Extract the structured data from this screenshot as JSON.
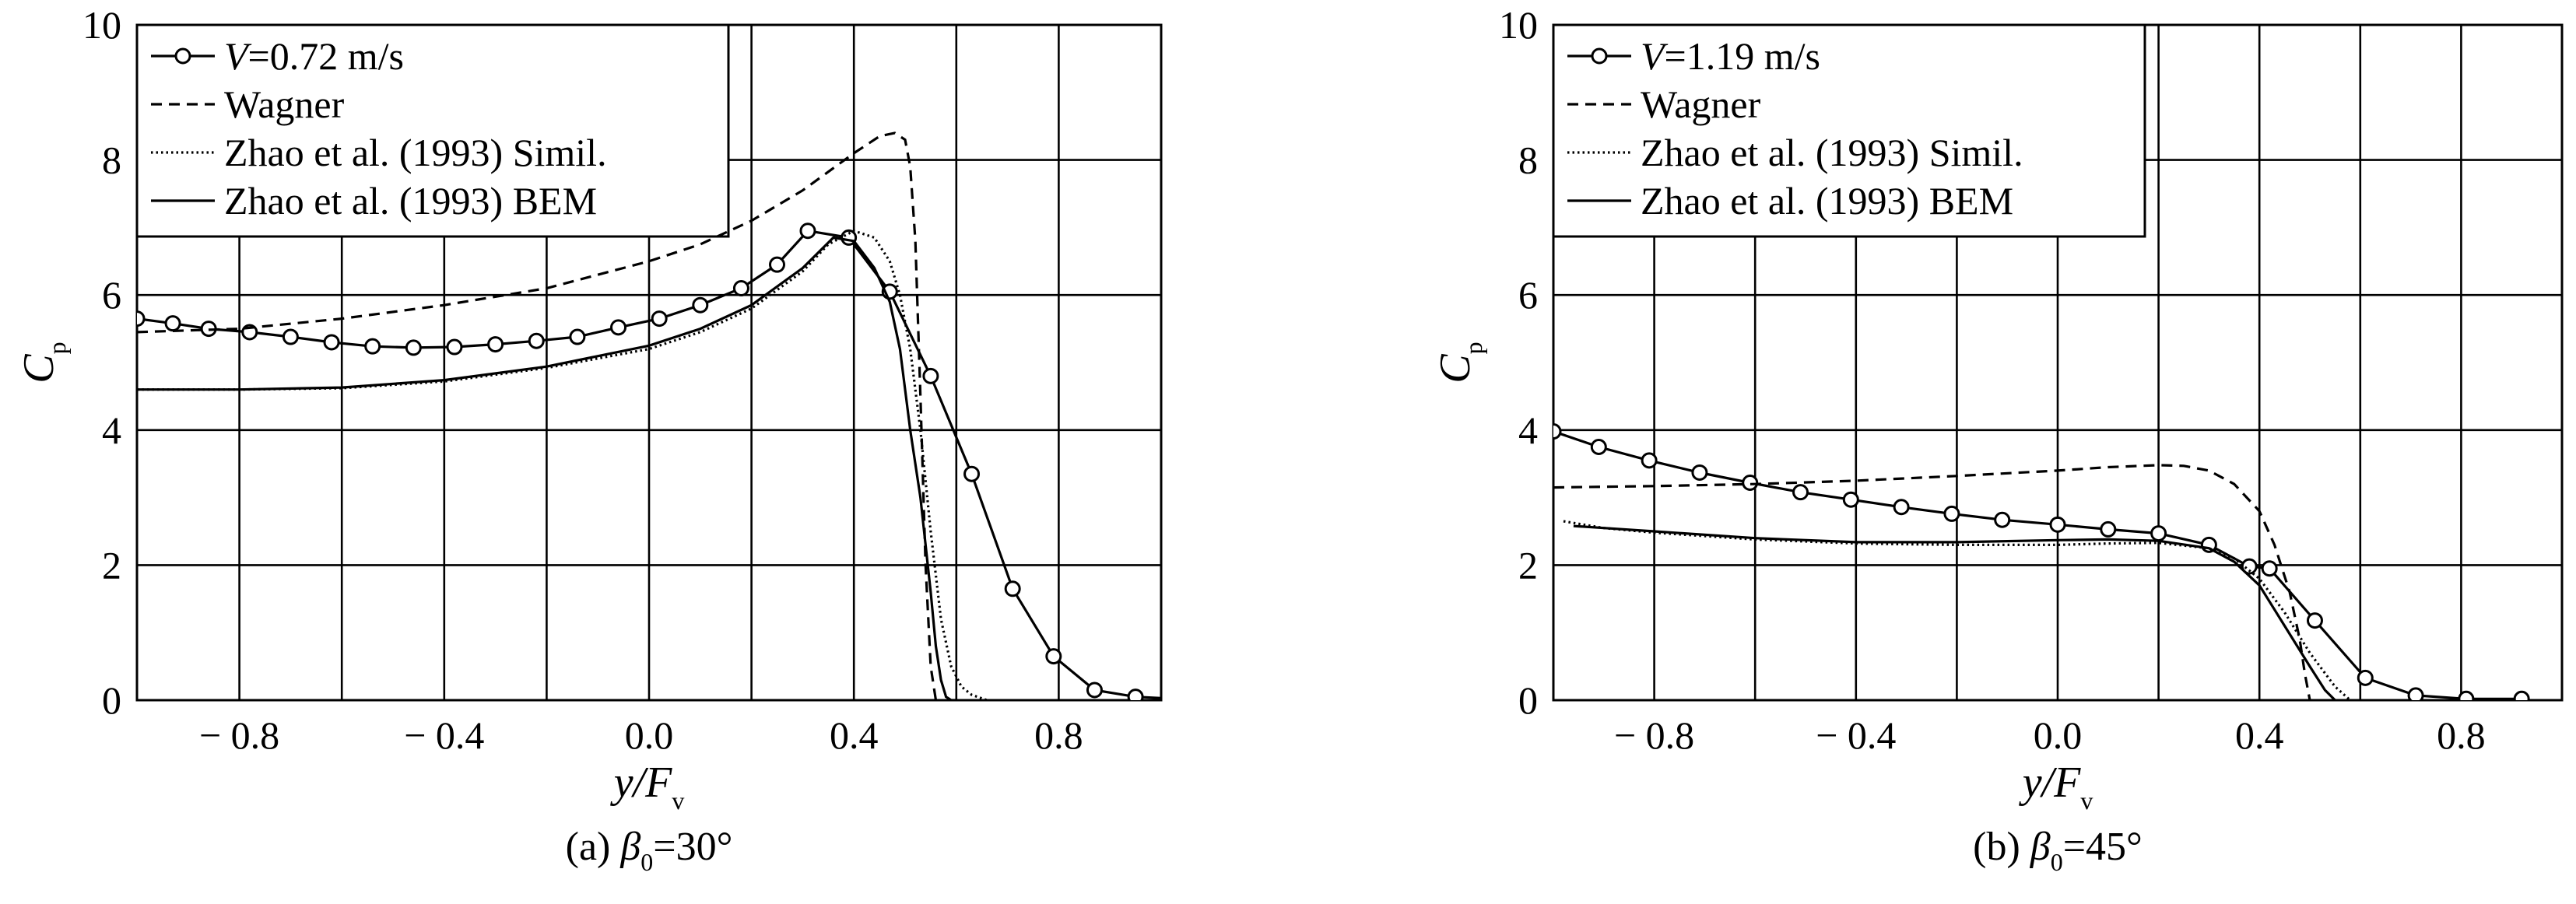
{
  "chart_data": [
    {
      "type": "line",
      "caption": {
        "prefix": "(a) ",
        "beta": "β",
        "sub": "0",
        "suffix": "=30°"
      },
      "xlabel": {
        "main": "y/F",
        "sub": "v"
      },
      "ylabel": {
        "main": "C",
        "sub": "p"
      },
      "xlim": [
        -1.0,
        1.0
      ],
      "ylim": [
        0,
        10
      ],
      "xticks": [
        -0.8,
        -0.4,
        0.0,
        0.4,
        0.8
      ],
      "xtick_labels": [
        "− 0.8",
        "− 0.4",
        "0.0",
        "0.4",
        "0.8"
      ],
      "yticks": [
        0,
        2,
        4,
        6,
        8,
        10
      ],
      "ytick_labels": [
        "0",
        "2",
        "4",
        "6",
        "8",
        "10"
      ],
      "grid": true,
      "legend_position": "top-left",
      "legend": [
        {
          "prefix": "V",
          "text": "=0.72 m/s",
          "style": "line-marker"
        },
        {
          "text": "Wagner",
          "style": "dashed"
        },
        {
          "text": "Zhao et al. (1993) Simil.",
          "style": "dotted"
        },
        {
          "text": "Zhao et al. (1993) BEM",
          "style": "solid"
        }
      ],
      "series": [
        {
          "name": "V=0.72 m/s",
          "style": "line-marker",
          "x": [
            -1.0,
            -0.93,
            -0.86,
            -0.78,
            -0.7,
            -0.62,
            -0.54,
            -0.46,
            -0.38,
            -0.3,
            -0.22,
            -0.14,
            -0.06,
            0.02,
            0.1,
            0.18,
            0.25,
            0.31,
            0.39,
            0.47,
            0.55,
            0.63,
            0.71,
            0.79,
            0.87,
            0.95,
            1.0
          ],
          "y": [
            5.65,
            5.58,
            5.5,
            5.45,
            5.38,
            5.3,
            5.24,
            5.22,
            5.23,
            5.27,
            5.32,
            5.38,
            5.52,
            5.65,
            5.85,
            6.1,
            6.45,
            6.95,
            6.85,
            6.05,
            4.8,
            3.35,
            1.65,
            0.65,
            0.15,
            0.05,
            0.03
          ],
          "markers": [
            -1.0,
            -0.93,
            -0.86,
            -0.78,
            -0.7,
            -0.62,
            -0.54,
            -0.46,
            -0.38,
            -0.3,
            -0.22,
            -0.14,
            -0.06,
            0.02,
            0.1,
            0.18,
            0.25,
            0.31,
            0.39,
            0.47,
            0.55,
            0.63,
            0.71,
            0.79,
            0.87,
            0.95
          ]
        },
        {
          "name": "Wagner",
          "style": "dashed",
          "x": [
            -1.0,
            -0.8,
            -0.6,
            -0.4,
            -0.2,
            0.0,
            0.1,
            0.2,
            0.3,
            0.4,
            0.45,
            0.48,
            0.5,
            0.51,
            0.52,
            0.53,
            0.54,
            0.55,
            0.56
          ],
          "y": [
            5.45,
            5.5,
            5.65,
            5.85,
            6.1,
            6.5,
            6.75,
            7.1,
            7.55,
            8.1,
            8.35,
            8.4,
            8.3,
            7.9,
            6.8,
            4.5,
            2.0,
            0.5,
            0.0
          ]
        },
        {
          "name": "Zhao et al. (1993) Simil.",
          "style": "dotted",
          "x": [
            -1.0,
            -0.8,
            -0.6,
            -0.4,
            -0.2,
            0.0,
            0.1,
            0.2,
            0.3,
            0.35,
            0.4,
            0.44,
            0.47,
            0.49,
            0.51,
            0.53,
            0.55,
            0.57,
            0.59,
            0.61,
            0.63,
            0.66
          ],
          "y": [
            4.6,
            4.6,
            4.62,
            4.72,
            4.92,
            5.2,
            5.45,
            5.8,
            6.35,
            6.75,
            6.95,
            6.85,
            6.5,
            6.0,
            5.2,
            4.0,
            2.5,
            1.2,
            0.5,
            0.2,
            0.08,
            0.0
          ]
        },
        {
          "name": "Zhao et al. (1993) BEM",
          "style": "solid",
          "x": [
            -1.0,
            -0.8,
            -0.6,
            -0.4,
            -0.2,
            0.0,
            0.1,
            0.2,
            0.3,
            0.36,
            0.4,
            0.44,
            0.47,
            0.49,
            0.51,
            0.53,
            0.55,
            0.56,
            0.57,
            0.58,
            0.59,
            0.6
          ],
          "y": [
            4.6,
            4.6,
            4.63,
            4.74,
            4.94,
            5.25,
            5.5,
            5.85,
            6.4,
            6.85,
            6.8,
            6.4,
            5.9,
            5.2,
            4.0,
            3.0,
            1.6,
            0.8,
            0.3,
            0.05,
            0.0,
            0.0
          ]
        }
      ]
    },
    {
      "type": "line",
      "caption": {
        "prefix": "(b) ",
        "beta": "β",
        "sub": "0",
        "suffix": "=45°"
      },
      "xlabel": {
        "main": "y/F",
        "sub": "v"
      },
      "ylabel": {
        "main": "C",
        "sub": "p"
      },
      "xlim": [
        -1.0,
        1.0
      ],
      "ylim": [
        0,
        10
      ],
      "xticks": [
        -0.8,
        -0.4,
        0.0,
        0.4,
        0.8
      ],
      "xtick_labels": [
        "− 0.8",
        "− 0.4",
        "0.0",
        "0.4",
        "0.8"
      ],
      "yticks": [
        0,
        2,
        4,
        6,
        8,
        10
      ],
      "ytick_labels": [
        "0",
        "2",
        "4",
        "6",
        "8",
        "10"
      ],
      "grid": true,
      "legend_position": "top-left",
      "legend": [
        {
          "prefix": "V",
          "text": "=1.19 m/s",
          "style": "line-marker"
        },
        {
          "text": "Wagner",
          "style": "dashed"
        },
        {
          "text": "Zhao et al. (1993) Simil.",
          "style": "dotted"
        },
        {
          "text": "Zhao et al. (1993) BEM",
          "style": "solid"
        }
      ],
      "series": [
        {
          "name": "V=1.19 m/s",
          "style": "line-marker",
          "x": [
            -1.0,
            -0.91,
            -0.81,
            -0.71,
            -0.61,
            -0.51,
            -0.41,
            -0.31,
            -0.21,
            -0.11,
            0.0,
            0.1,
            0.2,
            0.3,
            0.38,
            0.42,
            0.51,
            0.61,
            0.71,
            0.81,
            0.92
          ],
          "y": [
            3.98,
            3.75,
            3.55,
            3.37,
            3.22,
            3.08,
            2.97,
            2.86,
            2.76,
            2.67,
            2.6,
            2.53,
            2.47,
            2.3,
            1.98,
            1.95,
            1.18,
            0.33,
            0.07,
            0.02,
            0.02
          ],
          "markers": [
            -1.0,
            -0.91,
            -0.81,
            -0.71,
            -0.61,
            -0.51,
            -0.41,
            -0.31,
            -0.21,
            -0.11,
            0.0,
            0.1,
            0.2,
            0.3,
            0.38,
            0.42,
            0.51,
            0.61,
            0.71,
            0.81,
            0.92
          ]
        },
        {
          "name": "Wagner",
          "style": "dashed",
          "x": [
            -1.0,
            -0.8,
            -0.6,
            -0.4,
            -0.2,
            0.0,
            0.1,
            0.2,
            0.25,
            0.3,
            0.35,
            0.4,
            0.43,
            0.46,
            0.48,
            0.49,
            0.5
          ],
          "y": [
            3.15,
            3.17,
            3.2,
            3.25,
            3.32,
            3.4,
            3.45,
            3.48,
            3.47,
            3.4,
            3.2,
            2.8,
            2.3,
            1.6,
            0.9,
            0.4,
            0.0
          ]
        },
        {
          "name": "Zhao et al. (1993) Simil.",
          "style": "dotted",
          "x": [
            -0.98,
            -0.9,
            -0.8,
            -0.6,
            -0.4,
            -0.2,
            0.0,
            0.1,
            0.2,
            0.3,
            0.35,
            0.4,
            0.45,
            0.5,
            0.55,
            0.58
          ],
          "y": [
            2.65,
            2.55,
            2.48,
            2.38,
            2.32,
            2.3,
            2.3,
            2.32,
            2.33,
            2.25,
            2.1,
            1.8,
            1.3,
            0.7,
            0.2,
            0.0
          ]
        },
        {
          "name": "Zhao et al. (1993) BEM",
          "style": "solid",
          "x": [
            -0.96,
            -0.9,
            -0.8,
            -0.6,
            -0.4,
            -0.2,
            0.0,
            0.1,
            0.2,
            0.3,
            0.35,
            0.4,
            0.45,
            0.5,
            0.53,
            0.55
          ],
          "y": [
            2.58,
            2.55,
            2.5,
            2.4,
            2.34,
            2.34,
            2.37,
            2.38,
            2.36,
            2.25,
            2.05,
            1.7,
            1.1,
            0.5,
            0.15,
            0.0
          ]
        }
      ]
    }
  ]
}
